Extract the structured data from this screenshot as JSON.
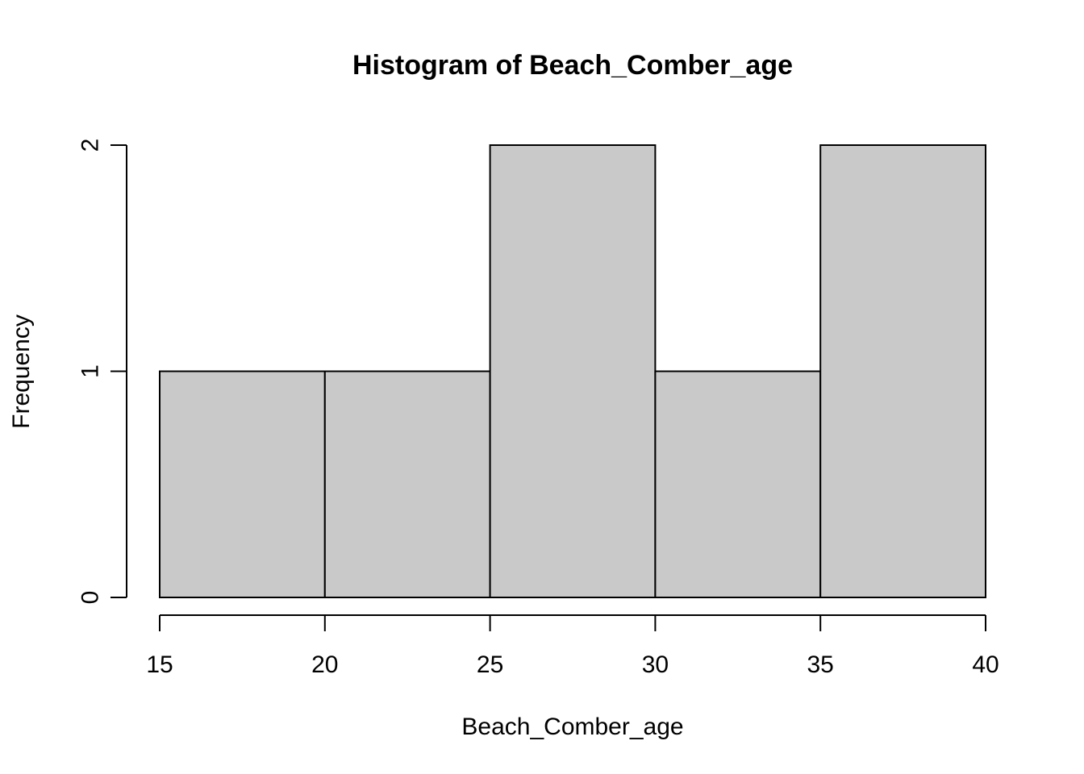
{
  "chart_data": {
    "type": "bar",
    "title": "Histogram of Beach_Comber_age",
    "xlabel": "Beach_Comber_age",
    "ylabel": "Frequency",
    "bins": [
      {
        "from": 15,
        "to": 20,
        "count": 1
      },
      {
        "from": 20,
        "to": 25,
        "count": 1
      },
      {
        "from": 25,
        "to": 30,
        "count": 2
      },
      {
        "from": 30,
        "to": 35,
        "count": 1
      },
      {
        "from": 35,
        "to": 40,
        "count": 2
      }
    ],
    "x_ticks": [
      "15",
      "20",
      "25",
      "30",
      "35",
      "40"
    ],
    "y_ticks": [
      "0",
      "1",
      "2"
    ],
    "xlim": [
      15,
      40
    ],
    "ylim": [
      0,
      2
    ],
    "grid": false,
    "legend": "none",
    "bar_color": "#c9c9c9",
    "edge_color": "#000000"
  }
}
